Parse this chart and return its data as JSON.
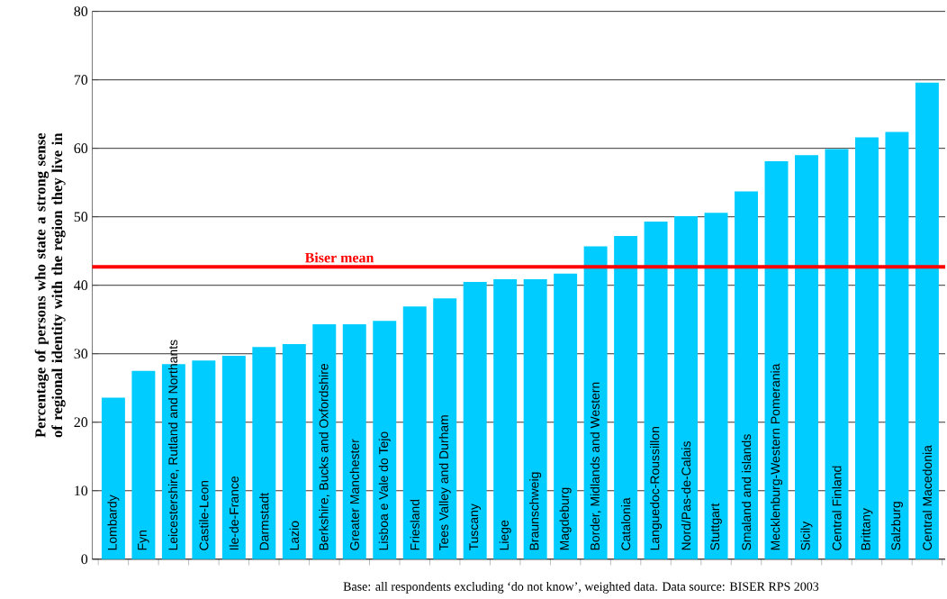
{
  "chart_data": {
    "type": "bar",
    "ylabel": "Percentage of persons who state a strong sense of regional identity with the region they live in",
    "categories": [
      "Lombardy",
      "Fyn",
      "Leicestershire, Rutland and Northants",
      "Castile-Leon",
      "Ile-de-France",
      "Darmstadt",
      "Lazio",
      "Berkshire, Bucks and Oxfordshire",
      "Greater Manchester",
      "Lisboa e Vale do Tejo",
      "Friesland",
      "Tees Valley and Durham",
      "Tuscany",
      "Liege",
      "Braunschweig",
      "Magdeburg",
      "Border, Midlands and Western",
      "Catalonia",
      "Languedoc-Roussillon",
      "Nord/Pas-de-Calais",
      "Stuttgart",
      "Smaland and islands",
      "Mecklenburg-Western Pomerania",
      "Sicily",
      "Central Finland",
      "Brittany",
      "Salzburg",
      "Central Macedonia"
    ],
    "values": [
      23.6,
      27.5,
      28.5,
      29.0,
      29.7,
      31.0,
      31.4,
      34.3,
      34.3,
      34.8,
      36.9,
      38.1,
      40.5,
      40.9,
      40.9,
      41.7,
      45.7,
      47.2,
      49.3,
      50.1,
      50.6,
      53.7,
      58.1,
      59.0,
      59.9,
      61.6,
      62.4,
      69.6
    ],
    "color": "#00ccff",
    "ylim": [
      0,
      80
    ],
    "yticks": [
      0,
      10,
      20,
      30,
      40,
      50,
      60,
      70,
      80
    ],
    "grid": "y",
    "ref_lines": [
      {
        "axis": "y",
        "value": 42.7,
        "label": "Biser mean",
        "color": "#ff0000"
      }
    ],
    "annotations": [
      "Base: all respondents excluding ‘do not know’, weighted data. Data source: BISER RPS 2003"
    ]
  }
}
